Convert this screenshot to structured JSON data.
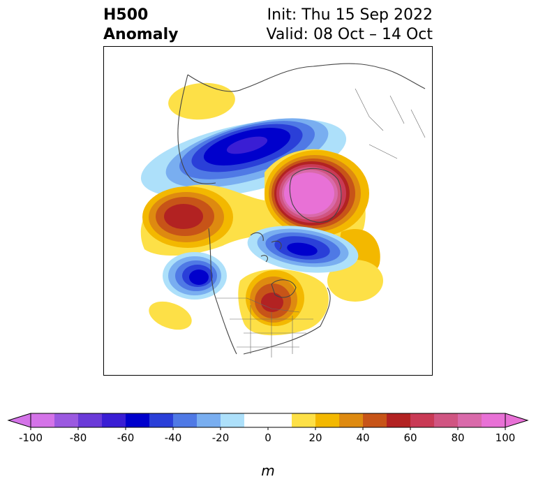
{
  "header": {
    "title_line1": "H500",
    "title_line2": "Anomaly",
    "init_text": "Init: Thu 15 Sep 2022",
    "valid_text": "Valid: 08 Oct – 14 Oct"
  },
  "map": {
    "projection": "north-polar-stereographic",
    "field": "500 hPa geopotential height anomaly",
    "features": [
      {
        "name": "ridge-alaska-bering",
        "sign": "positive",
        "peak_m": 60
      },
      {
        "name": "trough-siberia",
        "sign": "negative",
        "peak_m": -60
      },
      {
        "name": "ridge-greenland-arctic",
        "sign": "positive",
        "peak_m": 100
      },
      {
        "name": "trough-canada-arctic",
        "sign": "negative",
        "peak_m": -60
      },
      {
        "name": "trough-gulf-of-alaska",
        "sign": "negative",
        "peak_m": -60
      },
      {
        "name": "ridge-great-lakes",
        "sign": "positive",
        "peak_m": 60
      },
      {
        "name": "weak-ridge-northwest-europe",
        "sign": "positive",
        "peak_m": 20
      },
      {
        "name": "weak-ridge-pacific",
        "sign": "positive",
        "peak_m": 20
      }
    ]
  },
  "colorbar": {
    "unit_label": "m",
    "ticks": [
      "-100",
      "-80",
      "-60",
      "-40",
      "-20",
      "0",
      "20",
      "40",
      "60",
      "80",
      "100"
    ],
    "levels": [
      -100,
      -90,
      -80,
      -70,
      -60,
      -50,
      -40,
      -30,
      -20,
      -10,
      10,
      20,
      30,
      40,
      50,
      60,
      70,
      80,
      90,
      100
    ],
    "colors": [
      "#d473e8",
      "#9b59e0",
      "#6a3ad8",
      "#3a1ed4",
      "#0000cc",
      "#2a3fd8",
      "#4f79e5",
      "#79aef0",
      "#ade0fa",
      "#ffffff",
      "#fde047",
      "#f3b800",
      "#de8a10",
      "#c75418",
      "#b22222",
      "#c93a55",
      "#d05582",
      "#d96aaa",
      "#e871d6"
    ],
    "extend_low_color": "#d473e8",
    "extend_high_color": "#e871d6"
  }
}
